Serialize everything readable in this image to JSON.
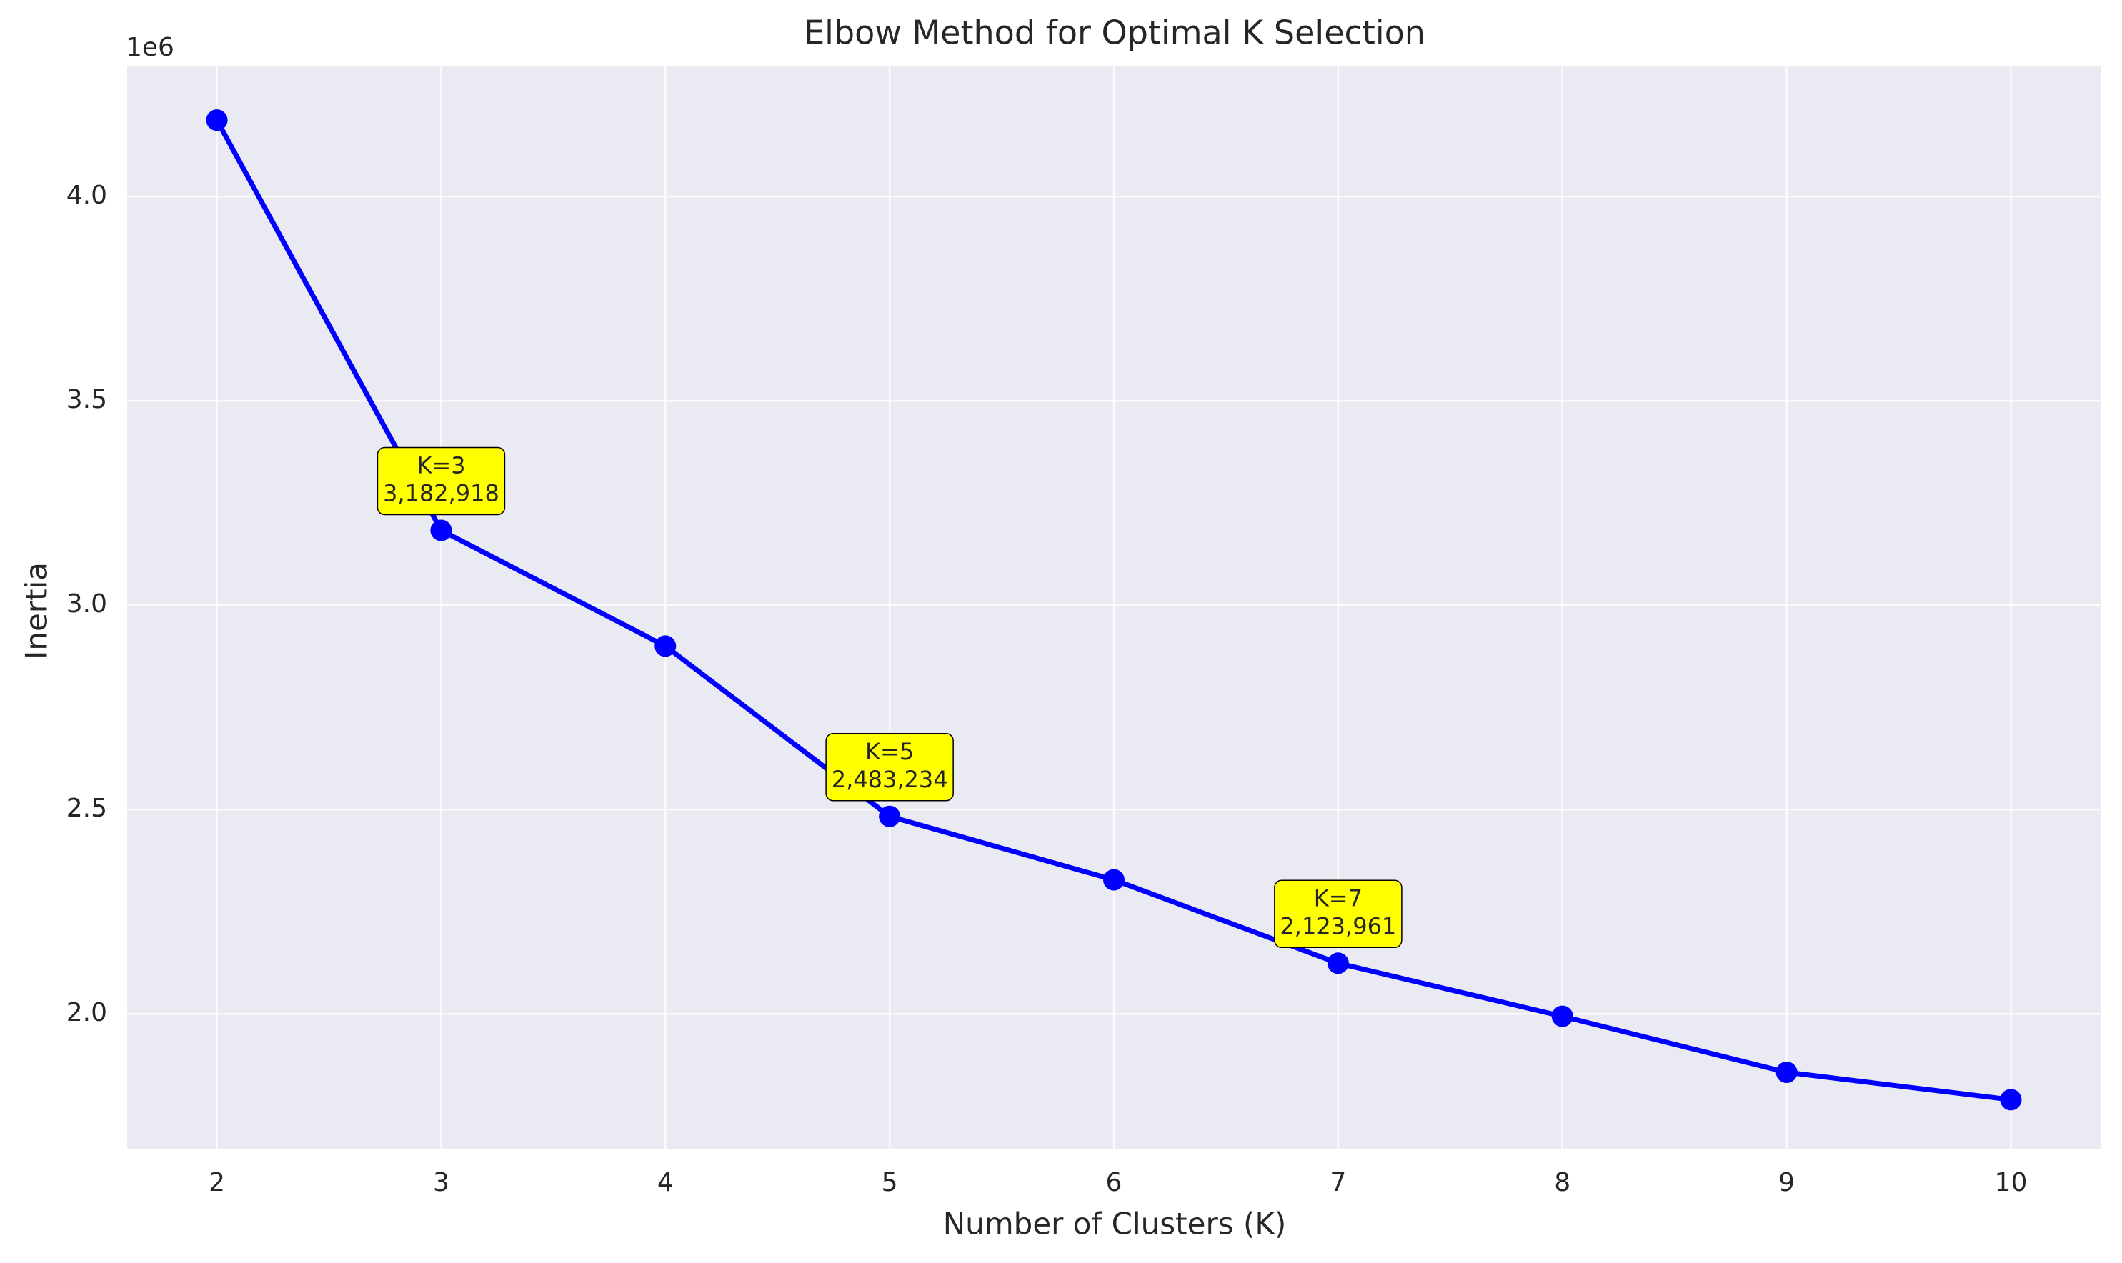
{
  "chart_data": {
    "type": "line",
    "title": "Elbow Method for Optimal K Selection",
    "xlabel": "Number of Clusters (K)",
    "ylabel": "Inertia",
    "y_offset_label": "1e6",
    "xlim": [
      1.6,
      10.4
    ],
    "ylim": [
      1.67,
      4.32
    ],
    "x_ticks": [
      2,
      3,
      4,
      5,
      6,
      7,
      8,
      9,
      10
    ],
    "y_ticks": [
      2.0,
      2.5,
      3.0,
      3.5,
      4.0
    ],
    "y_tick_labels": [
      "2.0",
      "2.5",
      "3.0",
      "3.5",
      "4.0"
    ],
    "y_scale": 1000000,
    "grid": true,
    "series": [
      {
        "color": "#0000ff",
        "marker": "circle",
        "x": [
          2,
          3,
          4,
          5,
          6,
          7,
          8,
          9,
          10
        ],
        "y": [
          4187000,
          3182918,
          2900000,
          2483234,
          2328000,
          2123961,
          1994000,
          1857000,
          1790000
        ]
      }
    ],
    "annotations": [
      {
        "x": 3,
        "y": 3182918,
        "lines": [
          "K=3",
          "3,182,918"
        ]
      },
      {
        "x": 5,
        "y": 2483234,
        "lines": [
          "K=5",
          "2,483,234"
        ]
      },
      {
        "x": 7,
        "y": 2123961,
        "lines": [
          "K=7",
          "2,123,961"
        ]
      }
    ],
    "colors": {
      "plot_background": "#eaeaf2",
      "grid": "#ffffff",
      "annotation_fill": "#ffff00",
      "annotation_border": "#000000"
    }
  }
}
